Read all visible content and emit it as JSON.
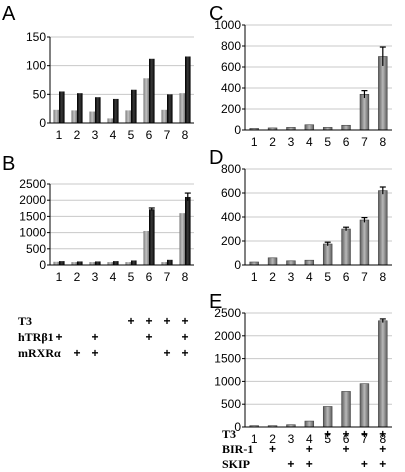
{
  "chart_data": [
    {
      "id": "A",
      "panel_label": "A",
      "type": "bar",
      "categories": [
        "1",
        "2",
        "3",
        "4",
        "5",
        "6",
        "7",
        "8"
      ],
      "series": [
        {
          "values": [
            23,
            22,
            20,
            8,
            22,
            78,
            23,
            52
          ],
          "color": "#9a9a9a"
        },
        {
          "values": [
            55,
            52,
            45,
            42,
            58,
            112,
            50,
            116
          ],
          "color": "#1a1a1a"
        }
      ],
      "ylim": [
        0,
        150
      ],
      "yticks": [
        "0",
        "50",
        "100",
        "150"
      ],
      "grid": true,
      "error_bars": false
    },
    {
      "id": "B",
      "panel_label": "B",
      "type": "bar",
      "categories": [
        "1",
        "2",
        "3",
        "4",
        "5",
        "6",
        "7",
        "8"
      ],
      "series": [
        {
          "values": [
            100,
            90,
            90,
            90,
            90,
            1050,
            90,
            1600
          ],
          "color": "#9a9a9a"
        },
        {
          "values": [
            120,
            110,
            110,
            120,
            140,
            1720,
            160,
            2100
          ],
          "color": "#1a1a1a",
          "errors": [
            0,
            0,
            0,
            0,
            0,
            40,
            0,
            120
          ]
        }
      ],
      "ylim": [
        0,
        2500
      ],
      "yticks": [
        "0",
        "500",
        "1000",
        "1500",
        "2000",
        "2500"
      ],
      "grid": true
    },
    {
      "id": "C",
      "panel_label": "C",
      "type": "bar",
      "categories": [
        "1",
        "2",
        "3",
        "4",
        "5",
        "6",
        "7",
        "8"
      ],
      "series": [
        {
          "values": [
            15,
            20,
            25,
            50,
            25,
            45,
            340,
            700
          ],
          "color": "#8c8c8c",
          "errors": [
            0,
            0,
            0,
            0,
            0,
            0,
            35,
            90
          ]
        }
      ],
      "ylim": [
        0,
        1000
      ],
      "yticks": [
        "0",
        "200",
        "400",
        "600",
        "800",
        "1000"
      ],
      "grid": true
    },
    {
      "id": "D",
      "panel_label": "D",
      "type": "bar",
      "categories": [
        "1",
        "2",
        "3",
        "4",
        "5",
        "6",
        "7",
        "8"
      ],
      "series": [
        {
          "values": [
            25,
            60,
            35,
            40,
            175,
            300,
            375,
            620
          ],
          "color": "#8c8c8c",
          "errors": [
            0,
            0,
            0,
            0,
            15,
            15,
            20,
            30
          ]
        }
      ],
      "ylim": [
        0,
        800
      ],
      "yticks": [
        "0",
        "200",
        "400",
        "600",
        "800"
      ],
      "grid": true
    },
    {
      "id": "E",
      "panel_label": "E",
      "type": "bar",
      "categories": [
        "1",
        "2",
        "3",
        "4",
        "5",
        "6",
        "7",
        "8"
      ],
      "series": [
        {
          "values": [
            30,
            30,
            50,
            130,
            450,
            780,
            950,
            2330
          ],
          "color": "#8c8c8c",
          "errors": [
            0,
            0,
            0,
            0,
            0,
            0,
            0,
            40
          ]
        }
      ],
      "ylim": [
        0,
        2500
      ],
      "yticks": [
        "0",
        "500",
        "1000",
        "1500",
        "2000",
        "2500"
      ],
      "grid": true
    }
  ],
  "conditions": [
    {
      "id": "left",
      "rows": [
        {
          "label": "T3",
          "marks": [
            0,
            0,
            0,
            0,
            1,
            1,
            1,
            1
          ]
        },
        {
          "label": "hTRβ1",
          "marks": [
            1,
            0,
            1,
            0,
            0,
            1,
            0,
            1
          ]
        },
        {
          "label": "mRXRα",
          "marks": [
            0,
            1,
            1,
            0,
            0,
            0,
            1,
            1
          ]
        }
      ],
      "mark_symbol": "+"
    },
    {
      "id": "right",
      "rows": [
        {
          "label": "T3",
          "marks": [
            0,
            0,
            0,
            0,
            1,
            1,
            1,
            1
          ]
        },
        {
          "label": "BIR-1",
          "marks": [
            0,
            1,
            0,
            1,
            0,
            1,
            0,
            1
          ]
        },
        {
          "label": "SKIP",
          "marks": [
            0,
            0,
            1,
            1,
            0,
            0,
            1,
            1
          ]
        }
      ],
      "mark_symbol": "+"
    }
  ]
}
